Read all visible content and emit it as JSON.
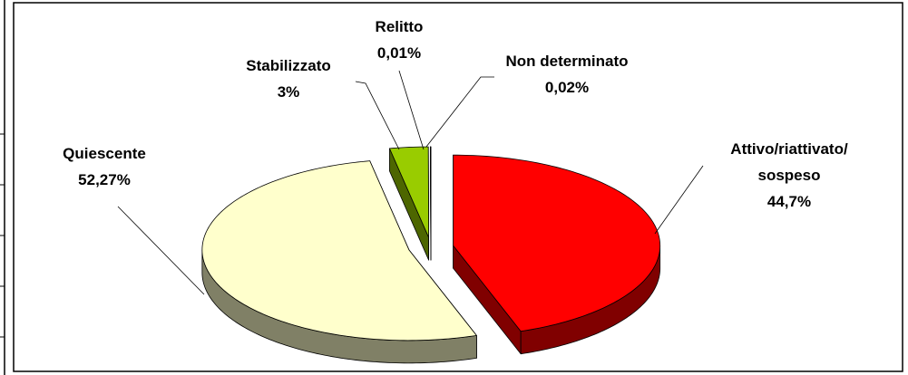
{
  "chart_data": {
    "type": "pie3d",
    "categories": [
      "Attivo/riattivato/\nsospeso",
      "Quiescente",
      "Stabilizzato",
      "Relitto",
      "Non determinato"
    ],
    "values": [
      44.7,
      52.27,
      3,
      0.01,
      0.02
    ],
    "value_labels": [
      "44,7%",
      "52,27%",
      "3%",
      "0,01%",
      "0,02%"
    ],
    "colors": [
      "#ff0000",
      "#ffffcc",
      "#99cc00",
      "#cccccc",
      "#9999ff"
    ],
    "side_colors": [
      "#800000",
      "#808066",
      "#4d6600",
      "#666666",
      "#4d4d80"
    ]
  }
}
